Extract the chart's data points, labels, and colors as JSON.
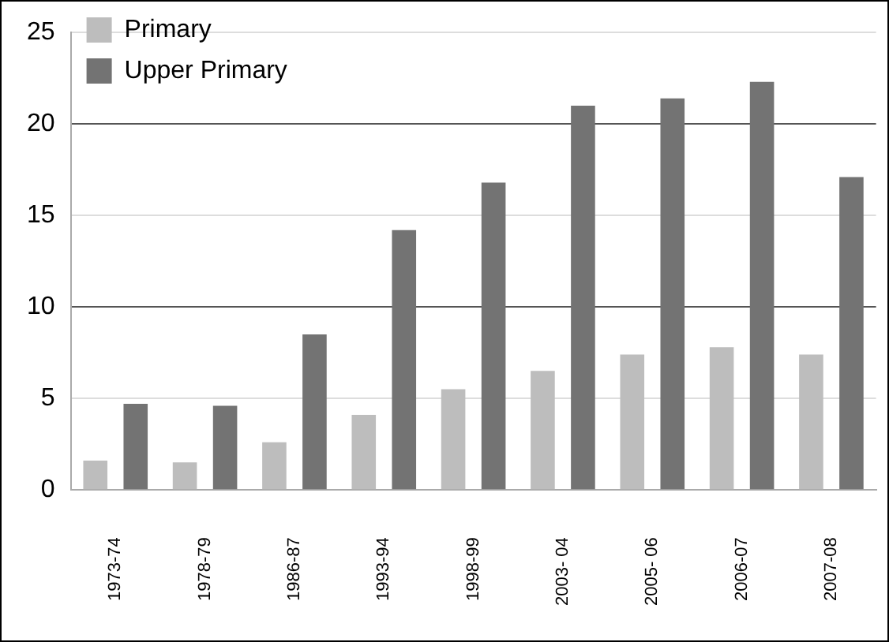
{
  "chart_data": {
    "type": "bar",
    "categories": [
      "1973-74",
      "1978-79",
      "1986-87",
      "1993-94",
      "1998-99",
      "2003- 04",
      "2005- 06",
      "2006-07",
      "2007-08"
    ],
    "series": [
      {
        "name": "Primary",
        "color": "#bdbdbd",
        "values": [
          1.6,
          1.5,
          2.6,
          4.1,
          5.5,
          6.5,
          7.4,
          7.8,
          7.4
        ]
      },
      {
        "name": "Upper Primary",
        "color": "#737373",
        "values": [
          4.7,
          4.6,
          8.5,
          14.2,
          16.8,
          21.0,
          21.4,
          22.3,
          17.1
        ]
      }
    ],
    "ylim": [
      0,
      25
    ],
    "yticks": [
      0,
      5,
      10,
      15,
      20,
      25
    ],
    "grid": "y",
    "legend": "top left"
  }
}
